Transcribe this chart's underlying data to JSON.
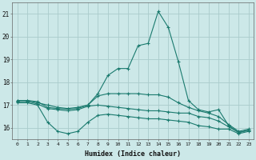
{
  "xlabel": "Humidex (Indice chaleur)",
  "bg_color": "#cce8e8",
  "grid_color": "#aacccc",
  "line_color": "#1a7a6e",
  "xlim": [
    -0.5,
    23.5
  ],
  "ylim": [
    15.5,
    21.5
  ],
  "yticks": [
    16,
    17,
    18,
    19,
    20,
    21
  ],
  "xticks": [
    0,
    1,
    2,
    3,
    4,
    5,
    6,
    7,
    8,
    9,
    10,
    11,
    12,
    13,
    14,
    15,
    16,
    17,
    18,
    19,
    20,
    21,
    22,
    23
  ],
  "line1": [
    17.2,
    17.2,
    17.1,
    17.0,
    16.9,
    16.85,
    16.9,
    17.0,
    17.5,
    18.3,
    18.6,
    18.6,
    19.6,
    19.7,
    21.1,
    20.4,
    18.9,
    17.2,
    16.8,
    16.7,
    16.8,
    16.1,
    15.8,
    15.9
  ],
  "line2": [
    17.2,
    17.2,
    17.15,
    16.9,
    16.85,
    16.82,
    16.85,
    17.0,
    17.4,
    17.5,
    17.5,
    17.5,
    17.5,
    17.45,
    17.45,
    17.35,
    17.1,
    16.9,
    16.75,
    16.65,
    16.5,
    16.15,
    15.85,
    15.95
  ],
  "line3": [
    17.15,
    17.15,
    17.05,
    16.85,
    16.8,
    16.75,
    16.8,
    16.95,
    17.0,
    16.95,
    16.9,
    16.85,
    16.8,
    16.75,
    16.75,
    16.7,
    16.65,
    16.65,
    16.5,
    16.45,
    16.3,
    16.05,
    15.8,
    15.9
  ],
  "line4": [
    17.1,
    17.1,
    17.0,
    16.25,
    15.85,
    15.75,
    15.85,
    16.25,
    16.55,
    16.6,
    16.55,
    16.5,
    16.45,
    16.4,
    16.4,
    16.35,
    16.3,
    16.25,
    16.1,
    16.05,
    15.95,
    15.95,
    15.75,
    15.85
  ]
}
